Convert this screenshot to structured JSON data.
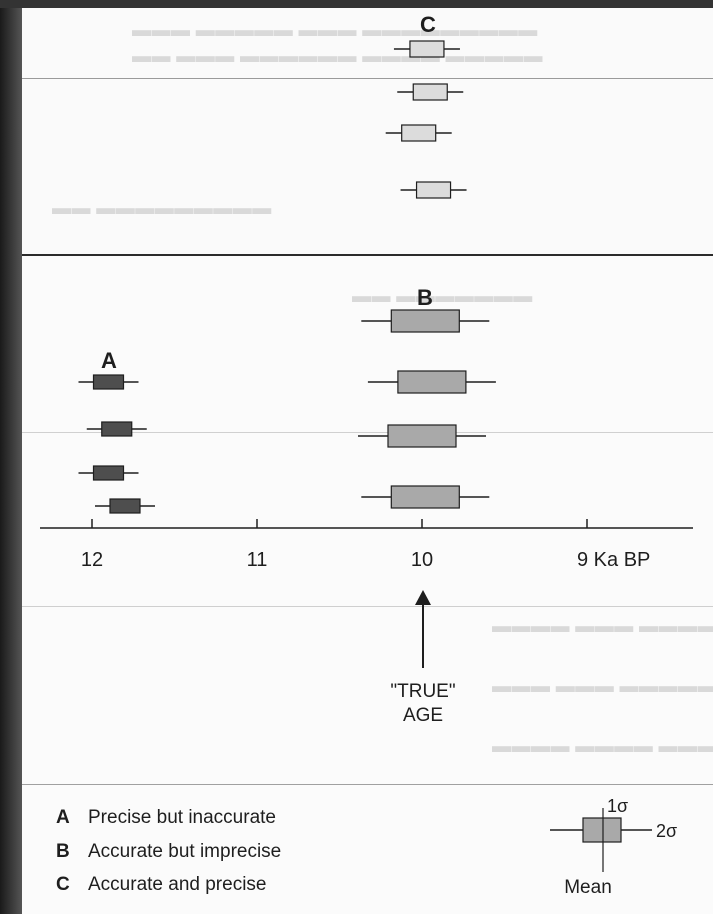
{
  "groups": {
    "A": {
      "label": "A",
      "boxes": [
        {
          "mean": 11.9
        },
        {
          "mean": 11.85
        },
        {
          "mean": 11.9
        },
        {
          "mean": 11.8
        }
      ]
    },
    "B": {
      "label": "B",
      "boxes": [
        {
          "mean": 9.98
        },
        {
          "mean": 9.94
        },
        {
          "mean": 10.0
        },
        {
          "mean": 9.98
        }
      ]
    },
    "C": {
      "label": "C",
      "boxes": [
        {
          "mean": 9.97
        },
        {
          "mean": 9.95
        },
        {
          "mean": 10.02
        },
        {
          "mean": 9.93
        }
      ]
    }
  },
  "axis": {
    "ticks": [
      {
        "value": 12,
        "label": "12"
      },
      {
        "value": 11,
        "label": "11"
      },
      {
        "value": 10,
        "label": "10"
      },
      {
        "value": 9,
        "label": "9 Ka BP"
      }
    ]
  },
  "true_age": {
    "label_line1": "\"TRUE\"",
    "label_line2": "AGE",
    "value": 10
  },
  "legend": [
    {
      "letter": "A",
      "text": "Precise but inaccurate"
    },
    {
      "letter": "B",
      "text": "Accurate but imprecise"
    },
    {
      "letter": "C",
      "text": "Accurate and precise"
    }
  ],
  "key": {
    "sigma1": "1σ",
    "sigma2": "2σ",
    "mean": "Mean"
  },
  "colors": {
    "A_fill": "#4e4e4e",
    "B_fill": "#a9a9a9",
    "C_fill": "#dcdcdc",
    "ink": "#1e1e1e"
  }
}
